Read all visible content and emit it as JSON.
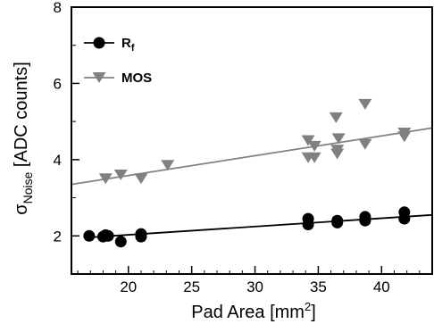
{
  "chart_data": {
    "type": "scatter",
    "title": "",
    "xlabel": {
      "text": "Pad Area [mm",
      "sup": "2",
      "after": "]"
    },
    "ylabel": {
      "main": "σ",
      "sub": "Noise",
      "rest": " [ADC counts]"
    },
    "xlim": [
      15.5,
      44
    ],
    "ylim": [
      1,
      8
    ],
    "xticks": [
      20,
      25,
      30,
      35,
      40
    ],
    "yticks": [
      2,
      4,
      6,
      8
    ],
    "grid": false,
    "legend_position": "top-left",
    "series": [
      {
        "name": "R",
        "name_sub": "f",
        "marker": "circle",
        "color": "#000000",
        "points": [
          [
            16.9,
            2.0
          ],
          [
            18.0,
            1.98
          ],
          [
            18.2,
            2.02
          ],
          [
            18.4,
            2.0
          ],
          [
            19.4,
            1.85
          ],
          [
            21.0,
            1.98
          ],
          [
            21.0,
            2.05
          ],
          [
            34.2,
            2.3
          ],
          [
            34.2,
            2.45
          ],
          [
            36.5,
            2.35
          ],
          [
            36.5,
            2.4
          ],
          [
            38.7,
            2.4
          ],
          [
            38.7,
            2.5
          ],
          [
            41.8,
            2.45
          ],
          [
            41.8,
            2.62
          ]
        ],
        "fit": [
          [
            16.9,
            1.96
          ],
          [
            44,
            2.55
          ]
        ]
      },
      {
        "name": "MOS",
        "name_sub": "",
        "marker": "triangle-down",
        "color": "#808080",
        "points": [
          [
            18.2,
            3.5
          ],
          [
            19.4,
            3.6
          ],
          [
            21.0,
            3.5
          ],
          [
            23.1,
            3.85
          ],
          [
            34.2,
            4.05
          ],
          [
            34.2,
            4.5
          ],
          [
            34.7,
            4.05
          ],
          [
            34.7,
            4.35
          ],
          [
            36.5,
            4.15
          ],
          [
            36.5,
            4.25
          ],
          [
            36.6,
            4.55
          ],
          [
            36.4,
            5.1
          ],
          [
            38.7,
            4.4
          ],
          [
            38.7,
            5.45
          ],
          [
            41.8,
            4.6
          ],
          [
            41.8,
            4.7
          ]
        ],
        "fit": [
          [
            15.5,
            3.35
          ],
          [
            44,
            4.83
          ]
        ]
      }
    ]
  }
}
